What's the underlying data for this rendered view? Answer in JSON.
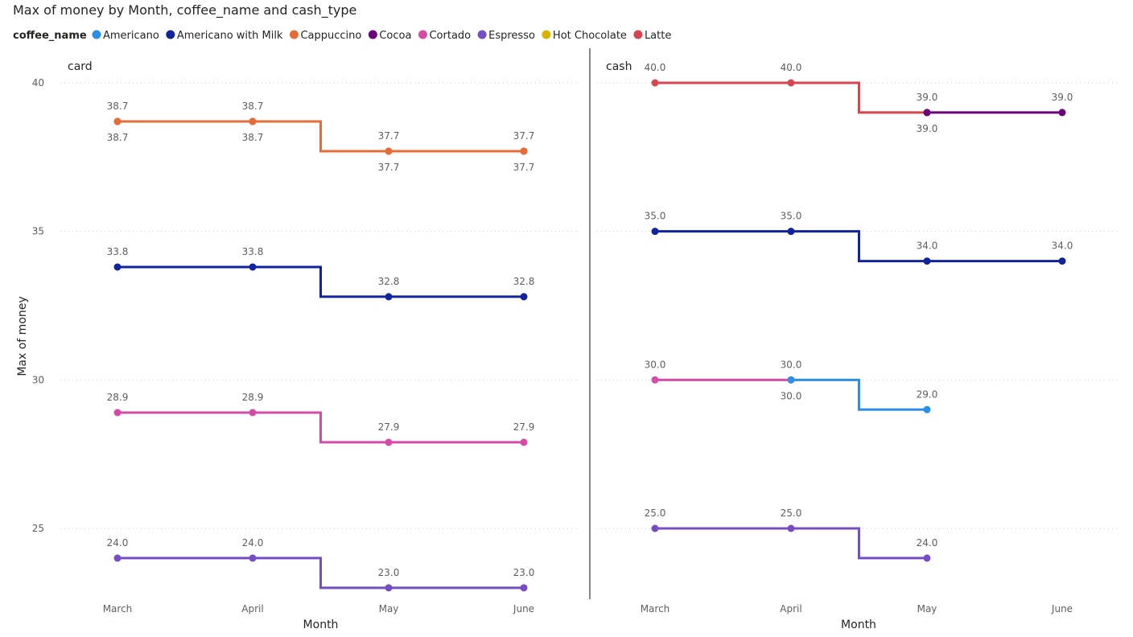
{
  "chart_data": {
    "type": "line",
    "step": true,
    "title": "Max of money by Month, coffee_name and cash_type",
    "legend": {
      "title": "coffee_name",
      "position": "top-left",
      "items": [
        {
          "name": "Americano",
          "color": "#2b8fe8"
        },
        {
          "name": "Americano with Milk",
          "color": "#12239e"
        },
        {
          "name": "Cappuccino",
          "color": "#e66c37"
        },
        {
          "name": "Cocoa",
          "color": "#6b007b"
        },
        {
          "name": "Cortado",
          "color": "#d64ba8"
        },
        {
          "name": "Espresso",
          "color": "#744ec2"
        },
        {
          "name": "Hot Chocolate",
          "color": "#d9b300"
        },
        {
          "name": "Latte",
          "color": "#d64550"
        }
      ]
    },
    "xlabel": "Month",
    "ylabel": "Max of money",
    "categories": [
      "March",
      "April",
      "May",
      "June"
    ],
    "yticks": [
      25,
      30,
      35,
      40
    ],
    "ylim": [
      23.0,
      40.7
    ],
    "grid": true,
    "panels": [
      {
        "name": "card",
        "series": [
          {
            "name": "Latte",
            "values": [
              38.7,
              38.7,
              37.7,
              37.7
            ],
            "labels": [
              "38.7",
              "38.7",
              "37.7",
              "37.7"
            ]
          },
          {
            "name": "Cappuccino",
            "values": [
              38.7,
              38.7,
              37.7,
              37.7
            ],
            "labels": [
              "38.7",
              "38.7",
              "37.7",
              "37.7"
            ]
          },
          {
            "name": "Americano with Milk",
            "values": [
              33.8,
              33.8,
              32.8,
              32.8
            ],
            "labels": [
              "33.8",
              "33.8",
              "32.8",
              "32.8"
            ]
          },
          {
            "name": "Cortado",
            "values": [
              28.9,
              28.9,
              27.9,
              27.9
            ],
            "labels": [
              "28.9",
              "28.9",
              "27.9",
              "27.9"
            ]
          },
          {
            "name": "Espresso",
            "values": [
              24.0,
              24.0,
              23.0,
              23.0
            ],
            "labels": [
              "24.0",
              "24.0",
              "23.0",
              "23.0"
            ]
          }
        ]
      },
      {
        "name": "cash",
        "series": [
          {
            "name": "Latte",
            "values": [
              40.0,
              40.0,
              39.0,
              null
            ],
            "labels": [
              "40.0",
              "40.0",
              "39.0",
              ""
            ]
          },
          {
            "name": "Cocoa",
            "values": [
              null,
              null,
              39.0,
              39.0
            ],
            "labels": [
              "",
              "",
              "39.0",
              "39.0"
            ]
          },
          {
            "name": "Americano with Milk",
            "values": [
              35.0,
              35.0,
              34.0,
              34.0
            ],
            "labels": [
              "35.0",
              "35.0",
              "34.0",
              "34.0"
            ]
          },
          {
            "name": "Cortado",
            "values": [
              30.0,
              30.0,
              null,
              null
            ],
            "labels": [
              "30.0",
              "30.0",
              "",
              ""
            ]
          },
          {
            "name": "Americano",
            "values": [
              null,
              30.0,
              29.0,
              null
            ],
            "labels": [
              "",
              "30.0",
              "29.0",
              ""
            ]
          },
          {
            "name": "Espresso",
            "values": [
              25.0,
              25.0,
              24.0,
              null
            ],
            "labels": [
              "25.0",
              "25.0",
              "24.0",
              ""
            ]
          }
        ]
      }
    ]
  }
}
